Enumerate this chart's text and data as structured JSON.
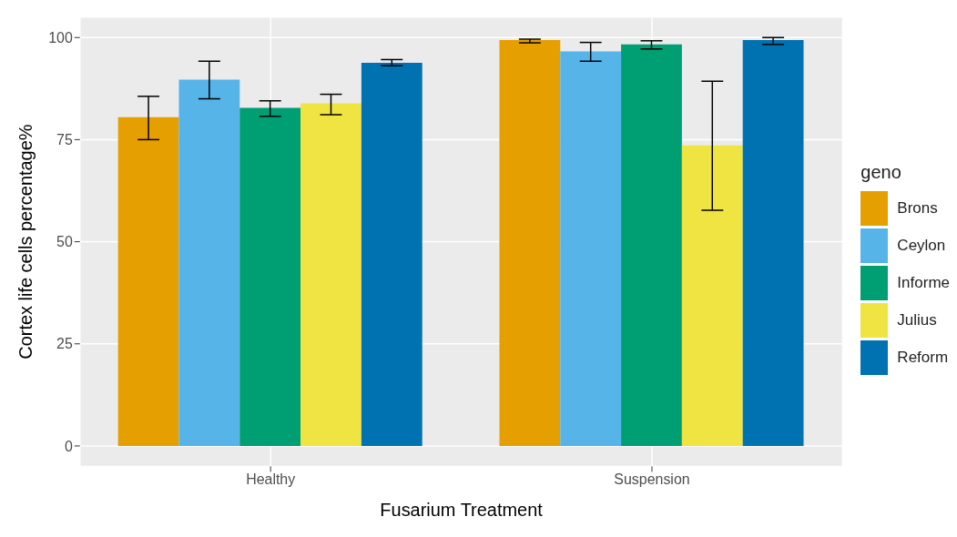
{
  "chart_data": {
    "type": "bar",
    "xlabel": "Fusarium Treatment",
    "ylabel": "Cortex life cells percentage%",
    "legend_title": "geno",
    "legend": "right",
    "grid": true,
    "categories": [
      "Healthy",
      "Suspension"
    ],
    "ylim": [
      -5,
      105
    ],
    "yticks": [
      0,
      25,
      50,
      75,
      100
    ],
    "series": [
      {
        "name": "Brons",
        "color": "#e69f00",
        "values": [
          80.5,
          99.4
        ],
        "errors": [
          [
            75.0,
            85.6
          ],
          [
            98.7,
            99.6
          ]
        ]
      },
      {
        "name": "Ceylon",
        "color": "#56b4e9",
        "values": [
          89.7,
          96.6
        ],
        "errors": [
          [
            85.0,
            94.2
          ],
          [
            94.2,
            98.8
          ]
        ]
      },
      {
        "name": "Informe",
        "color": "#009e73",
        "values": [
          82.8,
          98.3
        ],
        "errors": [
          [
            80.7,
            84.5
          ],
          [
            97.2,
            99.2
          ]
        ]
      },
      {
        "name": "Julius",
        "color": "#f0e442",
        "values": [
          83.9,
          73.6
        ],
        "errors": [
          [
            81.1,
            86.1
          ],
          [
            57.7,
            89.3
          ]
        ]
      },
      {
        "name": "Reform",
        "color": "#0072b2",
        "values": [
          93.8,
          99.4
        ],
        "errors": [
          [
            93.1,
            94.6
          ],
          [
            98.3,
            100
          ]
        ]
      }
    ]
  }
}
